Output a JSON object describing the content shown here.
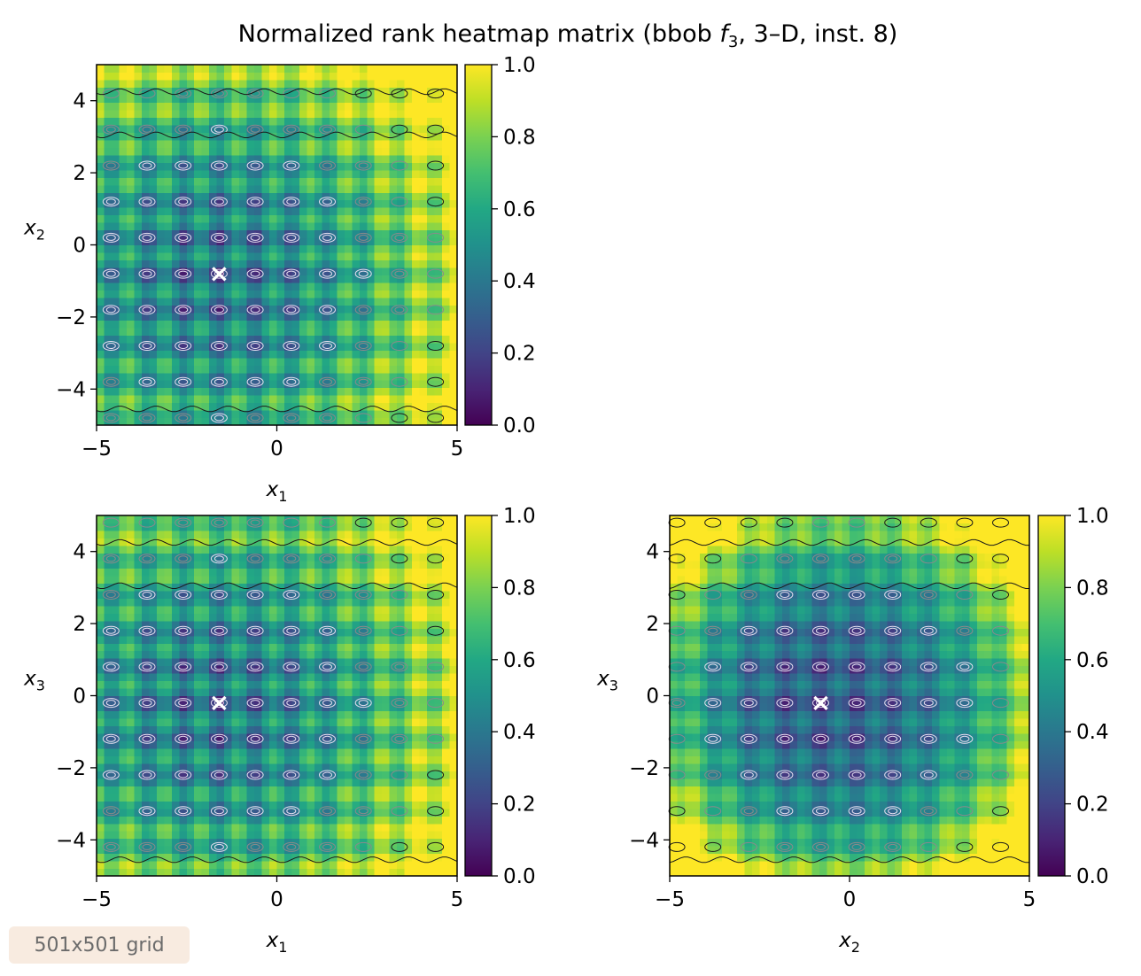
{
  "figure": {
    "title_prefix": "Normalized rank heatmap matrix (bbob ",
    "title_func": "f",
    "title_func_sub": "3",
    "title_suffix": ", 3–D, inst. 8)",
    "note": "501x501 grid"
  },
  "colors": {
    "colormap": "viridis",
    "contour_light": "#e6dff0",
    "contour_mid": "#8a8a8a",
    "contour_dark": "#1a1a1a",
    "optimum_marker": "#ffffff"
  },
  "chart_data": [
    {
      "type": "heatmap",
      "panel": "x1-x2",
      "x_var": "x",
      "x_sub": "1",
      "y_var": "x",
      "y_sub": "2",
      "xlim": [
        -5,
        5
      ],
      "ylim": [
        -5,
        5
      ],
      "xticks": [
        "−5",
        "0",
        "5"
      ],
      "yticks": [
        "−4",
        "−2",
        "0",
        "2",
        "4"
      ],
      "colorbar": {
        "range": [
          0.0,
          1.0
        ],
        "ticks": [
          "0.0",
          "0.2",
          "0.4",
          "0.6",
          "0.8",
          "1.0"
        ]
      },
      "optimum": {
        "x": -1.6,
        "y": -0.8
      },
      "marker": "×"
    },
    {
      "type": "heatmap",
      "panel": "x1-x3",
      "x_var": "x",
      "x_sub": "1",
      "y_var": "x",
      "y_sub": "3",
      "xlim": [
        -5,
        5
      ],
      "ylim": [
        -5,
        5
      ],
      "xticks": [
        "−5",
        "0",
        "5"
      ],
      "yticks": [
        "−4",
        "−2",
        "0",
        "2",
        "4"
      ],
      "colorbar": {
        "range": [
          0.0,
          1.0
        ],
        "ticks": [
          "0.0",
          "0.2",
          "0.4",
          "0.6",
          "0.8",
          "1.0"
        ]
      },
      "optimum": {
        "x": -1.6,
        "y": -0.2
      },
      "marker": "×"
    },
    {
      "type": "heatmap",
      "panel": "x2-x3",
      "x_var": "x",
      "x_sub": "2",
      "y_var": "x",
      "y_sub": "3",
      "xlim": [
        -5,
        5
      ],
      "ylim": [
        -5,
        5
      ],
      "xticks": [
        "−5",
        "0",
        "5"
      ],
      "yticks": [
        "−4",
        "−2",
        "0",
        "2",
        "4"
      ],
      "colorbar": {
        "range": [
          0.0,
          1.0
        ],
        "ticks": [
          "0.0",
          "0.2",
          "0.4",
          "0.6",
          "0.8",
          "1.0"
        ]
      },
      "optimum": {
        "x": -0.8,
        "y": -0.2
      },
      "marker": "×"
    }
  ]
}
